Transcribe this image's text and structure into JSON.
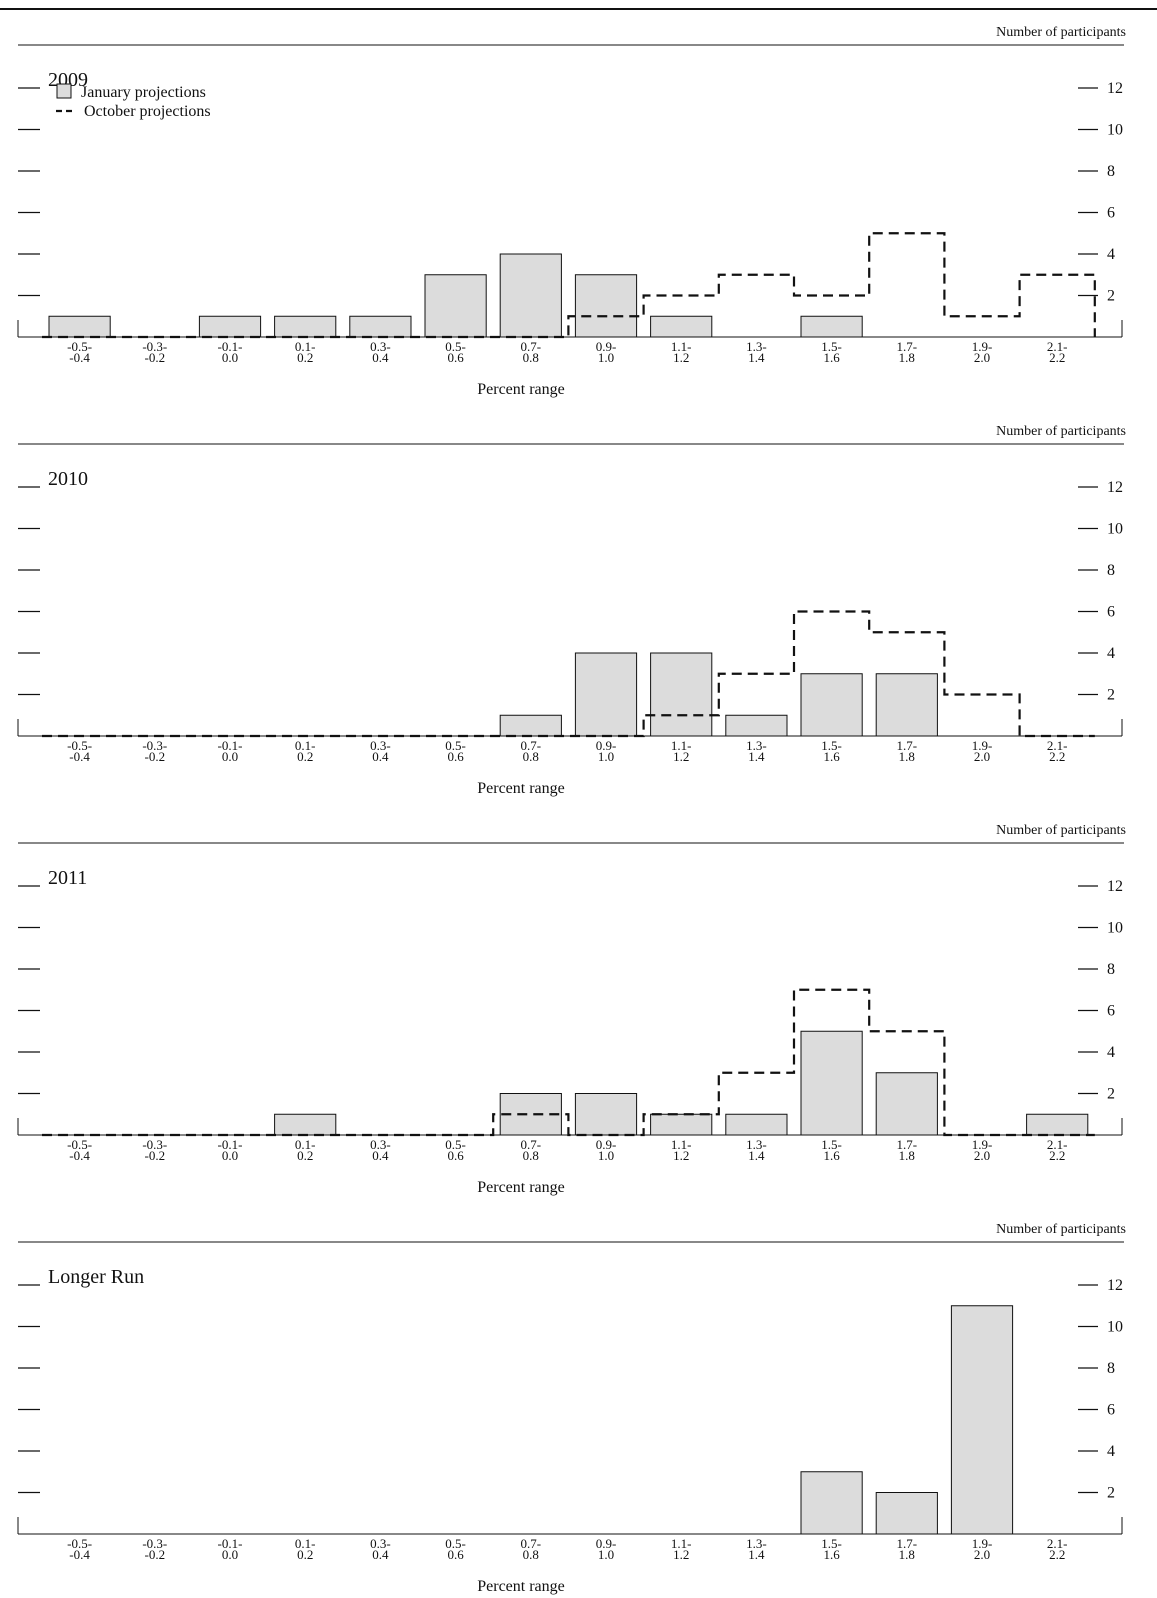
{
  "chart_data": [
    {
      "type": "bar",
      "title": "2009",
      "ylabel": "Number of participants",
      "xlabel": "Percent range",
      "ylim": [
        0,
        12
      ],
      "yticks": [
        2,
        4,
        6,
        8,
        10,
        12
      ],
      "categories": [
        "-0.5-\n-0.4",
        "-0.3-\n-0.2",
        "-0.1-\n0.0",
        "0.1-\n0.2",
        "0.3-\n0.4",
        "0.5-\n0.6",
        "0.7-\n0.8",
        "0.9-\n1.0",
        "1.1-\n1.2",
        "1.3-\n1.4",
        "1.5-\n1.6",
        "1.7-\n1.8",
        "1.9-\n2.0",
        "2.1-\n2.2"
      ],
      "legend": {
        "placement": "top-left",
        "bar_label": "January projections",
        "line_label": "October projections"
      },
      "series": [
        {
          "name": "January projections",
          "style": "bar",
          "color": "#dcdcdc",
          "values": [
            1,
            0,
            1,
            1,
            1,
            3,
            4,
            3,
            1,
            0,
            1,
            0,
            0,
            0
          ]
        },
        {
          "name": "October projections",
          "style": "dashed-step",
          "color": "#111111",
          "values": [
            0,
            0,
            0,
            0,
            0,
            0,
            0,
            1,
            2,
            3,
            2,
            5,
            1,
            3
          ]
        }
      ]
    },
    {
      "type": "bar",
      "title": "2010",
      "ylabel": "Number of participants",
      "xlabel": "Percent range",
      "ylim": [
        0,
        12
      ],
      "yticks": [
        2,
        4,
        6,
        8,
        10,
        12
      ],
      "categories": [
        "-0.5-\n-0.4",
        "-0.3-\n-0.2",
        "-0.1-\n0.0",
        "0.1-\n0.2",
        "0.3-\n0.4",
        "0.5-\n0.6",
        "0.7-\n0.8",
        "0.9-\n1.0",
        "1.1-\n1.2",
        "1.3-\n1.4",
        "1.5-\n1.6",
        "1.7-\n1.8",
        "1.9-\n2.0",
        "2.1-\n2.2"
      ],
      "series": [
        {
          "name": "January projections",
          "style": "bar",
          "color": "#dcdcdc",
          "values": [
            0,
            0,
            0,
            0,
            0,
            0,
            1,
            4,
            4,
            1,
            3,
            3,
            0,
            0
          ]
        },
        {
          "name": "October projections",
          "style": "dashed-step",
          "color": "#111111",
          "values": [
            0,
            0,
            0,
            0,
            0,
            0,
            0,
            0,
            1,
            3,
            6,
            5,
            2,
            0
          ]
        }
      ]
    },
    {
      "type": "bar",
      "title": "2011",
      "ylabel": "Number of participants",
      "xlabel": "Percent range",
      "ylim": [
        0,
        12
      ],
      "yticks": [
        2,
        4,
        6,
        8,
        10,
        12
      ],
      "categories": [
        "-0.5-\n-0.4",
        "-0.3-\n-0.2",
        "-0.1-\n0.0",
        "0.1-\n0.2",
        "0.3-\n0.4",
        "0.5-\n0.6",
        "0.7-\n0.8",
        "0.9-\n1.0",
        "1.1-\n1.2",
        "1.3-\n1.4",
        "1.5-\n1.6",
        "1.7-\n1.8",
        "1.9-\n2.0",
        "2.1-\n2.2"
      ],
      "series": [
        {
          "name": "January projections",
          "style": "bar",
          "color": "#dcdcdc",
          "values": [
            0,
            0,
            0,
            1,
            0,
            0,
            2,
            2,
            1,
            1,
            5,
            3,
            0,
            1
          ]
        },
        {
          "name": "October projections",
          "style": "dashed-step",
          "color": "#111111",
          "values": [
            0,
            0,
            0,
            0,
            0,
            0,
            1,
            0,
            1,
            3,
            7,
            5,
            0,
            0
          ]
        }
      ]
    },
    {
      "type": "bar",
      "title": "Longer Run",
      "ylabel": "Number of participants",
      "xlabel": "Percent range",
      "ylim": [
        0,
        12
      ],
      "yticks": [
        2,
        4,
        6,
        8,
        10,
        12
      ],
      "categories": [
        "-0.5-\n-0.4",
        "-0.3-\n-0.2",
        "-0.1-\n0.0",
        "0.1-\n0.2",
        "0.3-\n0.4",
        "0.5-\n0.6",
        "0.7-\n0.8",
        "0.9-\n1.0",
        "1.1-\n1.2",
        "1.3-\n1.4",
        "1.5-\n1.6",
        "1.7-\n1.8",
        "1.9-\n2.0",
        "2.1-\n2.2"
      ],
      "series": [
        {
          "name": "January projections",
          "style": "bar",
          "color": "#dcdcdc",
          "values": [
            0,
            0,
            0,
            0,
            0,
            0,
            0,
            0,
            0,
            0,
            3,
            2,
            11,
            0
          ]
        }
      ]
    }
  ]
}
